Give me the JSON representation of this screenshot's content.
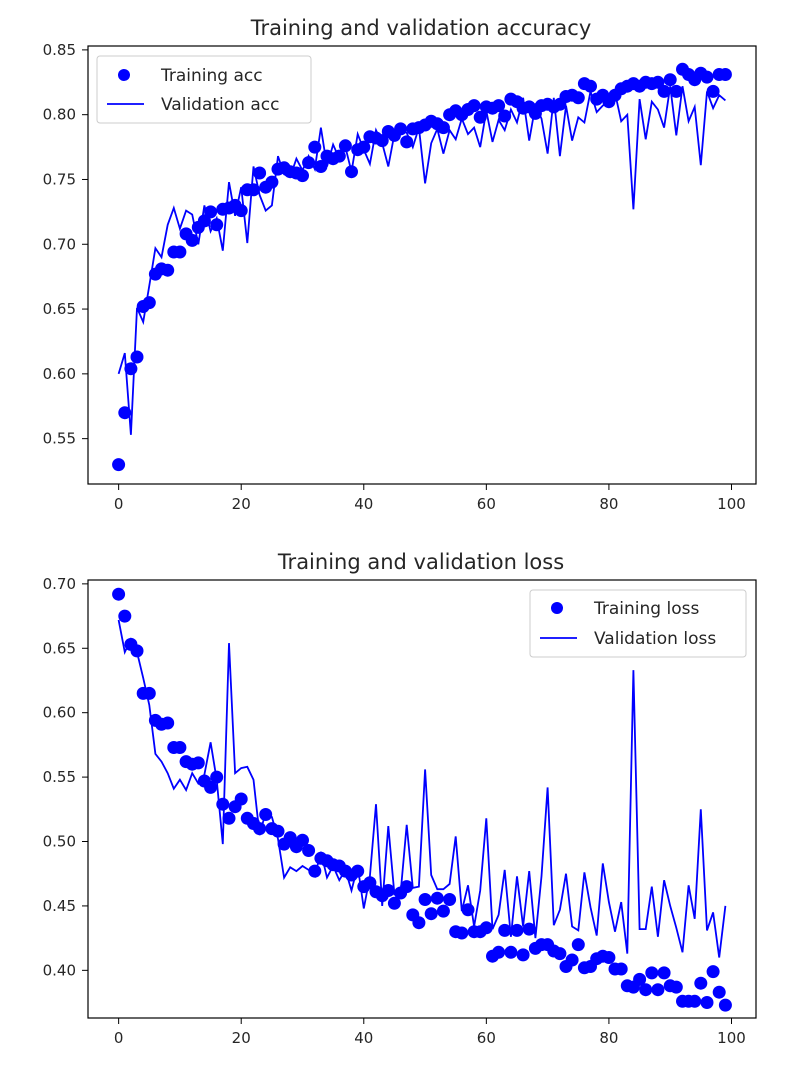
{
  "chart_data": [
    {
      "type": "line",
      "title": "Training and validation accuracy",
      "xlabel": "",
      "ylabel": "",
      "xlim": [
        -5,
        104
      ],
      "ylim": [
        0.515,
        0.853
      ],
      "xticks": [
        "0",
        "20",
        "40",
        "60",
        "80",
        "100"
      ],
      "yticks": [
        "0.55",
        "0.60",
        "0.65",
        "0.70",
        "0.75",
        "0.80",
        "0.85"
      ],
      "legend_position": "upper-left",
      "grid": false,
      "colors": {
        "training": "#0000ff",
        "validation": "#0000ff"
      },
      "x": [
        0,
        1,
        2,
        3,
        4,
        5,
        6,
        7,
        8,
        9,
        10,
        11,
        12,
        13,
        14,
        15,
        16,
        17,
        18,
        19,
        20,
        21,
        22,
        23,
        24,
        25,
        26,
        27,
        28,
        29,
        30,
        31,
        32,
        33,
        34,
        35,
        36,
        37,
        38,
        39,
        40,
        41,
        42,
        43,
        44,
        45,
        46,
        47,
        48,
        49,
        50,
        51,
        52,
        53,
        54,
        55,
        56,
        57,
        58,
        59,
        60,
        61,
        62,
        63,
        64,
        65,
        66,
        67,
        68,
        69,
        70,
        71,
        72,
        73,
        74,
        75,
        76,
        77,
        78,
        79,
        80,
        81,
        82,
        83,
        84,
        85,
        86,
        87,
        88,
        89,
        90,
        91,
        92,
        93,
        94,
        95,
        96,
        97,
        98,
        99
      ],
      "series": [
        {
          "name": "Training acc",
          "style": "dots",
          "values": [
            0.53,
            0.57,
            0.604,
            0.613,
            0.652,
            0.655,
            0.677,
            0.681,
            0.68,
            0.694,
            0.694,
            0.708,
            0.703,
            0.713,
            0.718,
            0.725,
            0.715,
            0.727,
            0.728,
            0.73,
            0.726,
            0.742,
            0.742,
            0.755,
            0.744,
            0.748,
            0.758,
            0.759,
            0.756,
            0.755,
            0.753,
            0.763,
            0.775,
            0.76,
            0.768,
            0.766,
            0.768,
            0.776,
            0.756,
            0.773,
            0.775,
            0.783,
            0.782,
            0.78,
            0.787,
            0.784,
            0.789,
            0.779,
            0.789,
            0.79,
            0.792,
            0.795,
            0.793,
            0.79,
            0.8,
            0.803,
            0.8,
            0.804,
            0.807,
            0.798,
            0.806,
            0.805,
            0.807,
            0.799,
            0.812,
            0.81,
            0.805,
            0.806,
            0.801,
            0.807,
            0.808,
            0.806,
            0.808,
            0.814,
            0.815,
            0.813,
            0.824,
            0.822,
            0.812,
            0.815,
            0.81,
            0.815,
            0.82,
            0.822,
            0.824,
            0.822,
            0.825,
            0.824,
            0.825,
            0.818,
            0.827,
            0.818,
            0.835,
            0.831,
            0.827,
            0.832,
            0.829,
            0.818,
            0.831,
            0.831
          ]
        },
        {
          "name": "Validation acc",
          "style": "line",
          "values": [
            0.6,
            0.616,
            0.553,
            0.651,
            0.64,
            0.668,
            0.697,
            0.69,
            0.715,
            0.728,
            0.712,
            0.726,
            0.723,
            0.7,
            0.73,
            0.71,
            0.72,
            0.695,
            0.748,
            0.722,
            0.744,
            0.701,
            0.76,
            0.738,
            0.726,
            0.73,
            0.768,
            0.754,
            0.752,
            0.766,
            0.757,
            0.768,
            0.758,
            0.79,
            0.76,
            0.777,
            0.766,
            0.775,
            0.756,
            0.785,
            0.773,
            0.762,
            0.788,
            0.778,
            0.76,
            0.785,
            0.788,
            0.786,
            0.775,
            0.79,
            0.747,
            0.778,
            0.789,
            0.77,
            0.788,
            0.781,
            0.797,
            0.785,
            0.79,
            0.775,
            0.803,
            0.779,
            0.796,
            0.788,
            0.804,
            0.794,
            0.813,
            0.78,
            0.807,
            0.797,
            0.77,
            0.813,
            0.768,
            0.807,
            0.78,
            0.798,
            0.794,
            0.818,
            0.802,
            0.807,
            0.81,
            0.817,
            0.795,
            0.8,
            0.727,
            0.812,
            0.781,
            0.81,
            0.804,
            0.79,
            0.822,
            0.784,
            0.822,
            0.795,
            0.806,
            0.761,
            0.818,
            0.805,
            0.815,
            0.811
          ]
        }
      ]
    },
    {
      "type": "line",
      "title": "Training and validation loss",
      "xlabel": "",
      "ylabel": "",
      "xlim": [
        -5,
        104
      ],
      "ylim": [
        0.363,
        0.703
      ],
      "xticks": [
        "0",
        "20",
        "40",
        "60",
        "80",
        "100"
      ],
      "yticks": [
        "0.40",
        "0.45",
        "0.50",
        "0.55",
        "0.60",
        "0.65",
        "0.70"
      ],
      "legend_position": "upper-right",
      "grid": false,
      "colors": {
        "training": "#0000ff",
        "validation": "#0000ff"
      },
      "x": [
        0,
        1,
        2,
        3,
        4,
        5,
        6,
        7,
        8,
        9,
        10,
        11,
        12,
        13,
        14,
        15,
        16,
        17,
        18,
        19,
        20,
        21,
        22,
        23,
        24,
        25,
        26,
        27,
        28,
        29,
        30,
        31,
        32,
        33,
        34,
        35,
        36,
        37,
        38,
        39,
        40,
        41,
        42,
        43,
        44,
        45,
        46,
        47,
        48,
        49,
        50,
        51,
        52,
        53,
        54,
        55,
        56,
        57,
        58,
        59,
        60,
        61,
        62,
        63,
        64,
        65,
        66,
        67,
        68,
        69,
        70,
        71,
        72,
        73,
        74,
        75,
        76,
        77,
        78,
        79,
        80,
        81,
        82,
        83,
        84,
        85,
        86,
        87,
        88,
        89,
        90,
        91,
        92,
        93,
        94,
        95,
        96,
        97,
        98,
        99
      ],
      "series": [
        {
          "name": "Training loss",
          "style": "dots",
          "values": [
            0.692,
            0.675,
            0.653,
            0.648,
            0.615,
            0.615,
            0.594,
            0.591,
            0.592,
            0.573,
            0.573,
            0.562,
            0.56,
            0.561,
            0.547,
            0.542,
            0.55,
            0.529,
            0.518,
            0.527,
            0.533,
            0.518,
            0.514,
            0.51,
            0.521,
            0.51,
            0.508,
            0.498,
            0.503,
            0.496,
            0.501,
            0.493,
            0.477,
            0.487,
            0.485,
            0.482,
            0.481,
            0.477,
            0.474,
            0.477,
            0.465,
            0.468,
            0.461,
            0.458,
            0.462,
            0.452,
            0.46,
            0.465,
            0.443,
            0.437,
            0.455,
            0.444,
            0.456,
            0.446,
            0.455,
            0.43,
            0.429,
            0.447,
            0.43,
            0.43,
            0.433,
            0.411,
            0.414,
            0.431,
            0.414,
            0.431,
            0.412,
            0.432,
            0.417,
            0.42,
            0.42,
            0.415,
            0.413,
            0.403,
            0.408,
            0.42,
            0.402,
            0.403,
            0.409,
            0.411,
            0.41,
            0.401,
            0.401,
            0.388,
            0.387,
            0.393,
            0.385,
            0.398,
            0.385,
            0.398,
            0.388,
            0.387,
            0.376,
            0.376,
            0.376,
            0.39,
            0.375,
            0.399,
            0.383,
            0.373
          ]
        },
        {
          "name": "Validation loss",
          "style": "line",
          "values": [
            0.672,
            0.647,
            0.657,
            0.647,
            0.627,
            0.606,
            0.568,
            0.562,
            0.553,
            0.541,
            0.548,
            0.54,
            0.553,
            0.545,
            0.552,
            0.577,
            0.548,
            0.498,
            0.654,
            0.553,
            0.557,
            0.558,
            0.548,
            0.505,
            0.523,
            0.519,
            0.502,
            0.472,
            0.48,
            0.477,
            0.481,
            0.478,
            0.473,
            0.492,
            0.472,
            0.481,
            0.47,
            0.478,
            0.462,
            0.481,
            0.448,
            0.473,
            0.529,
            0.45,
            0.512,
            0.459,
            0.46,
            0.513,
            0.464,
            0.465,
            0.556,
            0.474,
            0.463,
            0.463,
            0.467,
            0.504,
            0.446,
            0.466,
            0.434,
            0.462,
            0.518,
            0.432,
            0.443,
            0.478,
            0.426,
            0.473,
            0.434,
            0.477,
            0.425,
            0.473,
            0.542,
            0.435,
            0.447,
            0.475,
            0.434,
            0.431,
            0.476,
            0.449,
            0.427,
            0.483,
            0.453,
            0.43,
            0.453,
            0.413,
            0.633,
            0.432,
            0.432,
            0.465,
            0.426,
            0.47,
            0.45,
            0.433,
            0.414,
            0.466,
            0.44,
            0.525,
            0.431,
            0.445,
            0.41,
            0.45
          ]
        }
      ]
    }
  ]
}
